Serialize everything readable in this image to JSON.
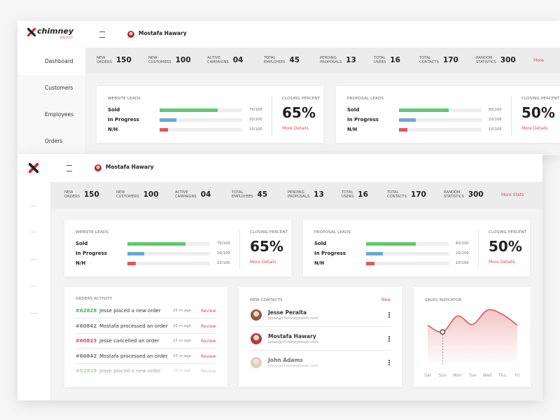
{
  "brand": {
    "name": "chimney",
    "tag": "BOOST"
  },
  "sidebar": [
    "Dashboard",
    "Customers",
    "Employees",
    "Orders"
  ],
  "user": "Mostafa Hawary",
  "stats": [
    {
      "label": "NEW ORDERS",
      "value": 150
    },
    {
      "label": "NEW CUSTOMERS",
      "value": 100
    },
    {
      "label": "ACTIVE CAMPAIGNS",
      "value": "04"
    },
    {
      "label": "TOTAL EMPLOYEES",
      "value": 45
    },
    {
      "label": "PENDING PROPOSALS",
      "value": 13
    },
    {
      "label": "TOTAL USERS",
      "value": 16
    },
    {
      "label": "TOTAL CONTACTS",
      "value": 170
    },
    {
      "label": "RANDOM STATISTICS",
      "value": 300
    }
  ],
  "stats_link": "More Stats",
  "stats_link_short": "More",
  "leads": [
    {
      "title": "WEBSITE LEADS",
      "rows": [
        {
          "label": "Sold",
          "value": 70,
          "max": 100,
          "value_label": "70/100",
          "color": "#5fc96e"
        },
        {
          "label": "In Progress",
          "value": 20,
          "max": 100,
          "value_label": "20/100",
          "color": "#6aa8d2"
        },
        {
          "label": "N/H",
          "value": 10,
          "max": 100,
          "value_label": "10/100",
          "color": "#e0565c"
        }
      ],
      "closing_title": "CLOSING PERCENT",
      "closing": 65,
      "closing_label": "65%",
      "link": "More Details"
    },
    {
      "title": "PROPOSAL LEADS",
      "rows": [
        {
          "label": "Sold",
          "value": 60,
          "max": 100,
          "value_label": "60/100",
          "color": "#5fc96e"
        },
        {
          "label": "In Progress",
          "value": 20,
          "max": 100,
          "value_label": "20/100",
          "color": "#6aa8d2"
        },
        {
          "label": "N/H",
          "value": 10,
          "max": 100,
          "value_label": "10/100",
          "color": "#e0565c"
        }
      ],
      "closing_title": "CLOSING PERCENT",
      "closing": 50,
      "closing_label": "50%",
      "link": "More Details"
    }
  ],
  "orders": {
    "title": "ORDERS ACTIVITY",
    "link": "Review",
    "items": [
      {
        "id": "#62828",
        "text": "Jesse placed a new order",
        "time": "25 m ago",
        "color": "#43b05c"
      },
      {
        "id": "#60842",
        "text": "Mostafa processed an order",
        "time": "25 m ago",
        "color": "#777777"
      },
      {
        "id": "#60823",
        "text": "Jesse cancelled an order",
        "time": "25 m ago",
        "color": "#e0474e"
      },
      {
        "id": "#60842",
        "text": "Mostafa processed an order",
        "time": "25 m ago",
        "color": "#777777"
      },
      {
        "id": "#62828",
        "text": "Jesse placed a new order",
        "time": "25 m ago",
        "color": "#43b05c"
      }
    ]
  },
  "contacts": {
    "title": "NEW CONTACTS",
    "link": "New",
    "items": [
      {
        "name": "Jesse Peralta",
        "email": "Jesse@chimneyboost.com"
      },
      {
        "name": "Mostafa Hawary",
        "email": "Jesse@chimneyboost.com"
      },
      {
        "name": "John Adams",
        "email": "Jesse@chimneyboost.com"
      }
    ]
  },
  "chart_data": {
    "type": "line",
    "title": "SALES INDICATOR",
    "categories": [
      "Sat",
      "Sun",
      "Mon",
      "Tue",
      "Wed",
      "Thu",
      "Fri"
    ],
    "values": [
      67,
      59,
      78,
      68,
      85,
      80,
      67
    ],
    "ylim": [
      0,
      100
    ],
    "color": "#e0575d",
    "highlight": 1
  }
}
